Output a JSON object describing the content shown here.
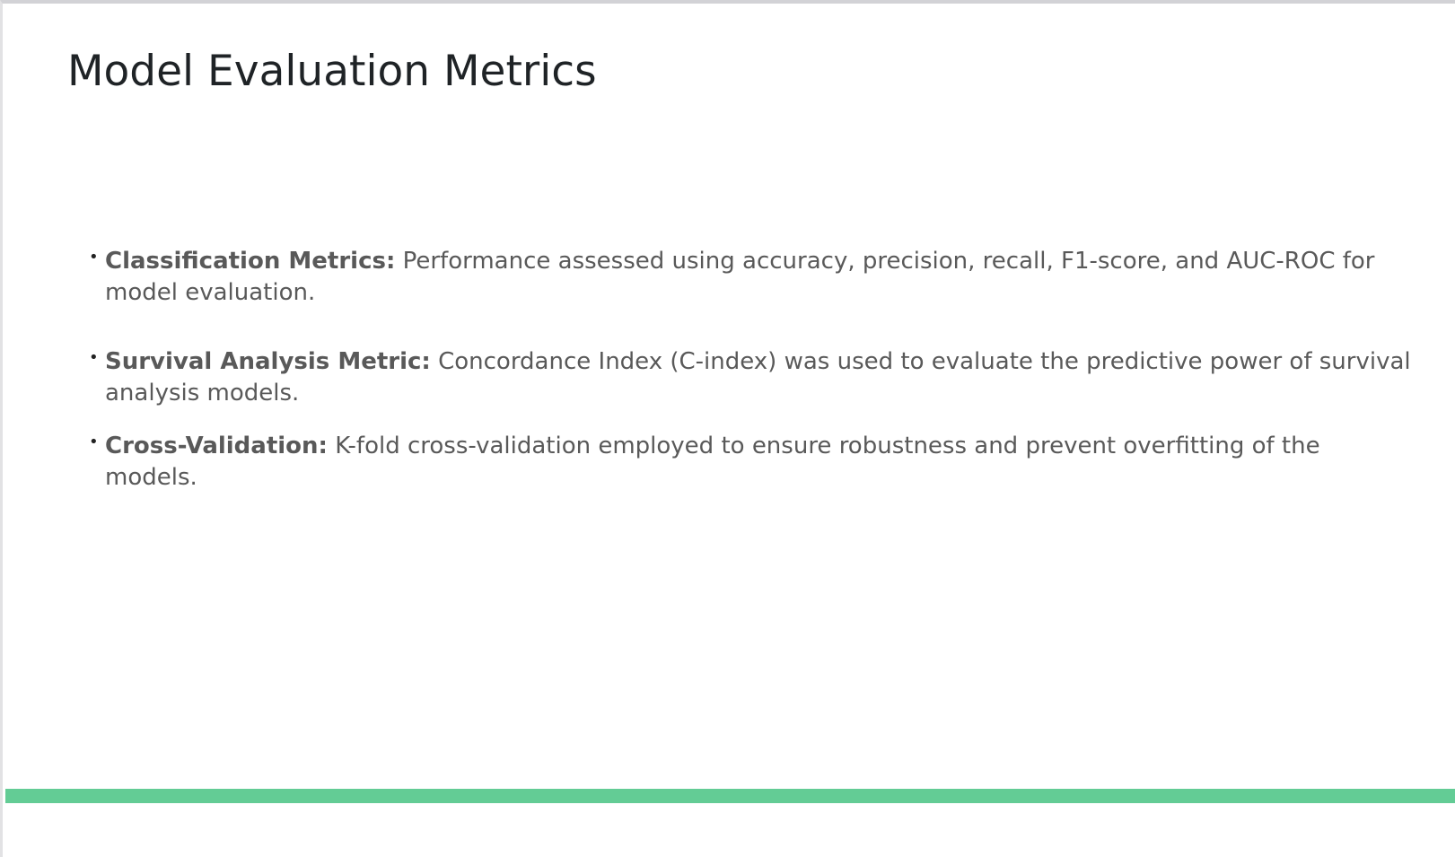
{
  "slide": {
    "title": "Model Evaluation Metrics",
    "bullets": [
      {
        "term": "Classification Metrics:",
        "text": " Performance assessed using accuracy, precision, recall, F1-score, and AUC-ROC for model evaluation."
      },
      {
        "term": "Survival Analysis Metric:",
        "text": " Concordance Index (C-index) was used to evaluate the predictive power of survival analysis models."
      },
      {
        "term": "Cross-Validation:",
        "text": " K-fold cross-validation employed to ensure robustness and prevent overfitting of the models."
      }
    ],
    "bullet_glyph": "•",
    "accent_color": "#63cc95"
  }
}
